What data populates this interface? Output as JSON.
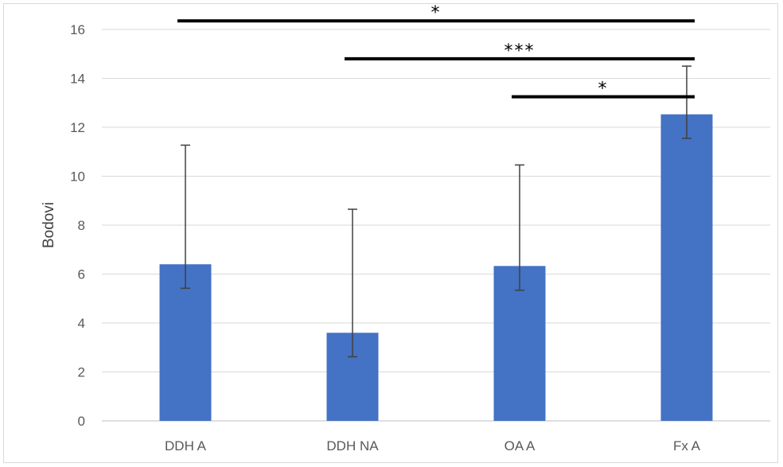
{
  "chart_data": {
    "type": "bar",
    "title": "",
    "xlabel": "",
    "ylabel": "Bodovi",
    "ylim": [
      0,
      16
    ],
    "yticks": [
      0,
      2,
      4,
      6,
      8,
      10,
      12,
      14,
      16
    ],
    "grid": true,
    "legend": "none",
    "categories": [
      "DDH A",
      "DDH NA",
      "OA A",
      "Fx A"
    ],
    "values": [
      6.4,
      3.6,
      6.33,
      12.53
    ],
    "error_upper": [
      11.27,
      8.65,
      10.46,
      14.5
    ],
    "error_lower": [
      5.42,
      2.62,
      5.34,
      11.55
    ],
    "bar_color": "#4472C4",
    "significance": [
      {
        "from": "DDH A",
        "to": "Fx A",
        "y": 16.35,
        "label": "*"
      },
      {
        "from": "DDH NA",
        "to": "Fx A",
        "y": 14.8,
        "label": "***"
      },
      {
        "from": "OA A",
        "to": "Fx A",
        "y": 13.25,
        "label": "*"
      }
    ]
  }
}
